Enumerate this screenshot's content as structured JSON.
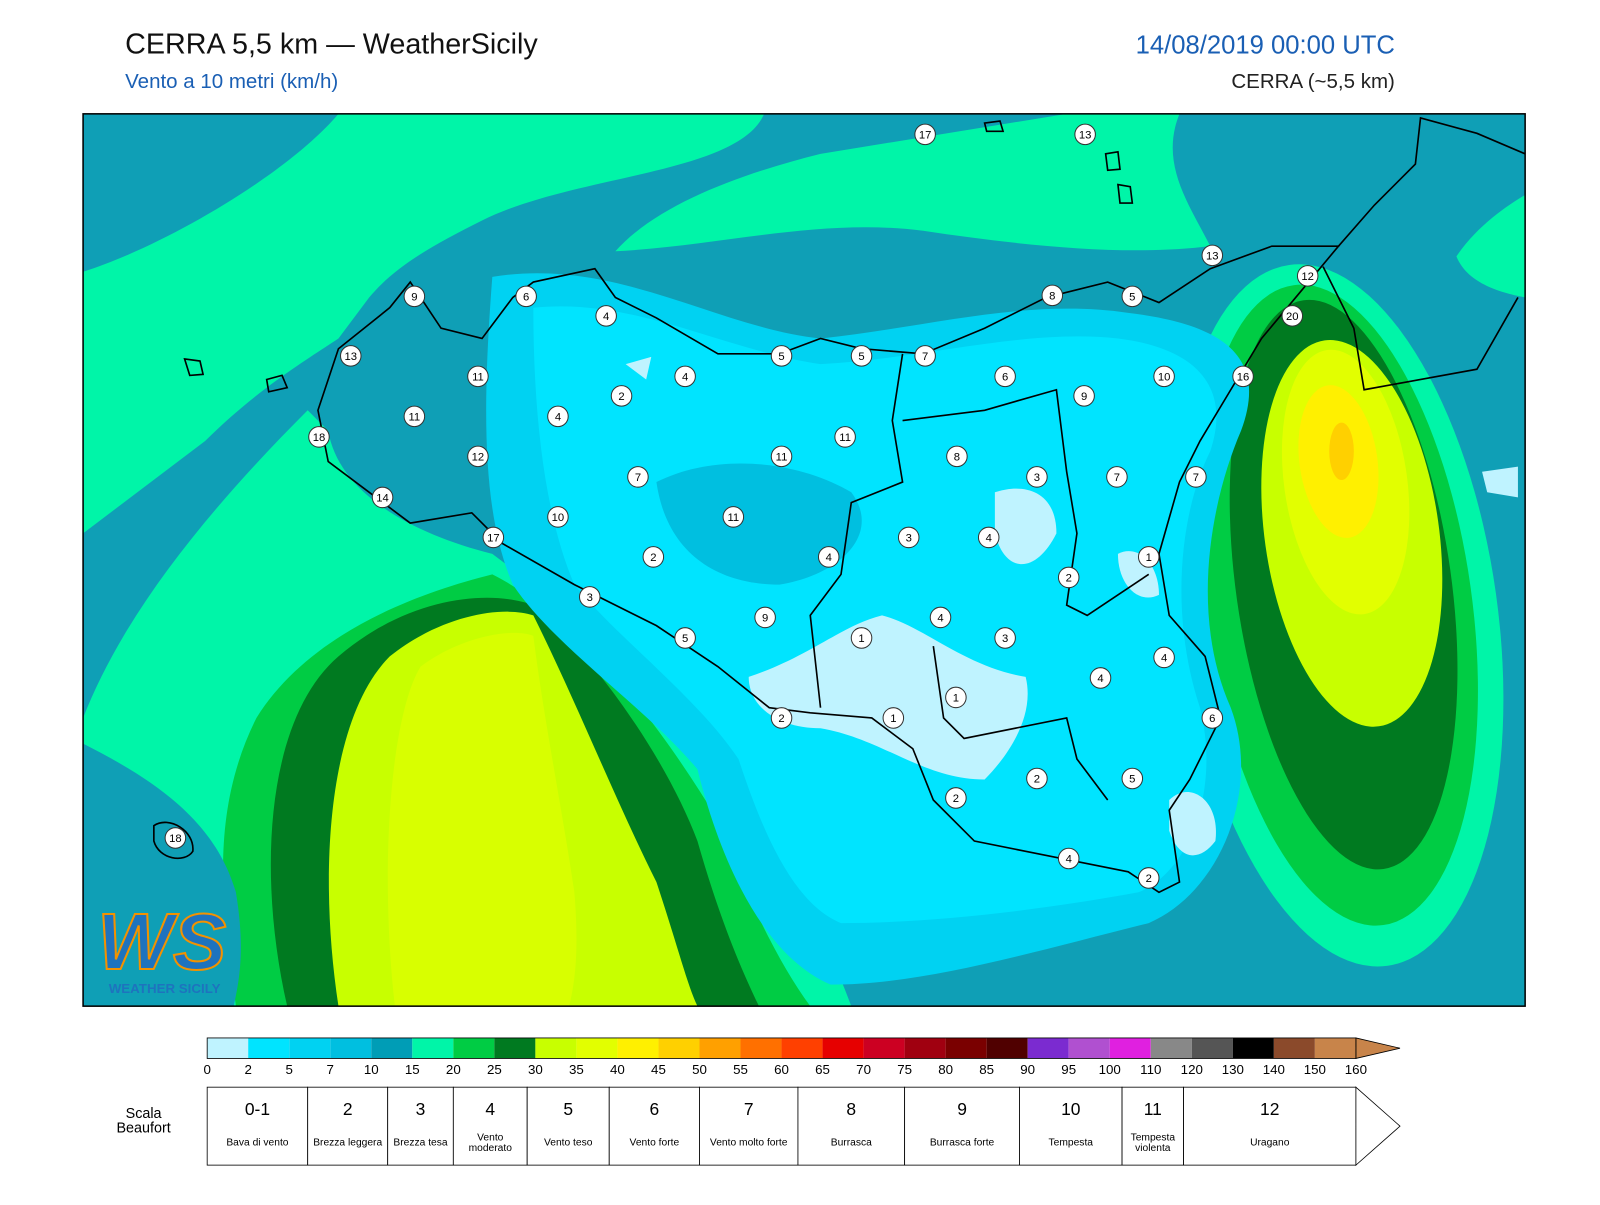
{
  "header": {
    "title": "CERRA 5,5 km — WeatherSicily",
    "subtitle": "Vento a 10 metri (km/h)",
    "run_time": "14/08/2019 00:00 UTC",
    "model": "CERRA (~5,5 km)"
  },
  "map": {
    "stations": [
      17,
      13,
      13,
      12,
      20,
      9,
      6,
      4,
      8,
      5,
      13,
      11,
      5,
      5,
      7,
      4,
      6,
      10,
      16,
      2,
      9,
      11,
      4,
      18,
      11,
      12,
      11,
      8,
      7,
      3,
      7,
      7,
      14,
      10,
      11,
      17,
      3,
      4,
      2,
      4,
      1,
      2,
      3,
      9,
      4,
      5,
      1,
      3,
      4,
      4,
      1,
      2,
      1,
      6,
      2,
      5,
      2,
      18,
      4,
      2
    ]
  },
  "colorbar": {
    "ticks": [
      0,
      2,
      5,
      7,
      10,
      15,
      20,
      25,
      30,
      35,
      40,
      45,
      50,
      55,
      60,
      65,
      70,
      75,
      80,
      85,
      90,
      95,
      100,
      110,
      120,
      130,
      140,
      150,
      160
    ],
    "colors": [
      "#bff3ff",
      "#00e4ff",
      "#00d2f2",
      "#00bfe0",
      "#009db6",
      "#00f5a8",
      "#00cc44",
      "#007a20",
      "#c8ff00",
      "#e2ff00",
      "#fff000",
      "#ffd000",
      "#ffa000",
      "#ff7000",
      "#ff4000",
      "#e60000",
      "#cc0022",
      "#a00010",
      "#7a0000",
      "#500000",
      "#7b2bd0",
      "#b050d0",
      "#e020e0",
      "#888888",
      "#555555",
      "#000000",
      "#8b4a2b",
      "#c8844a"
    ]
  },
  "beaufort": {
    "label": "Scala Beaufort",
    "levels": [
      {
        "force": "0-1",
        "description": "Bava di vento"
      },
      {
        "force": "2",
        "description": "Brezza leggera"
      },
      {
        "force": "3",
        "description": "Brezza tesa"
      },
      {
        "force": "4",
        "description": "Vento moderato"
      },
      {
        "force": "5",
        "description": "Vento teso"
      },
      {
        "force": "6",
        "description": "Vento forte"
      },
      {
        "force": "7",
        "description": "Vento molto forte"
      },
      {
        "force": "8",
        "description": "Burrasca"
      },
      {
        "force": "9",
        "description": "Burrasca forte"
      },
      {
        "force": "10",
        "description": "Tempesta"
      },
      {
        "force": "11",
        "description": "Tempesta violenta"
      },
      {
        "force": "12",
        "description": "Uragano"
      }
    ]
  },
  "logo": {
    "initials": "WS",
    "name": "WEATHER SICILY"
  }
}
